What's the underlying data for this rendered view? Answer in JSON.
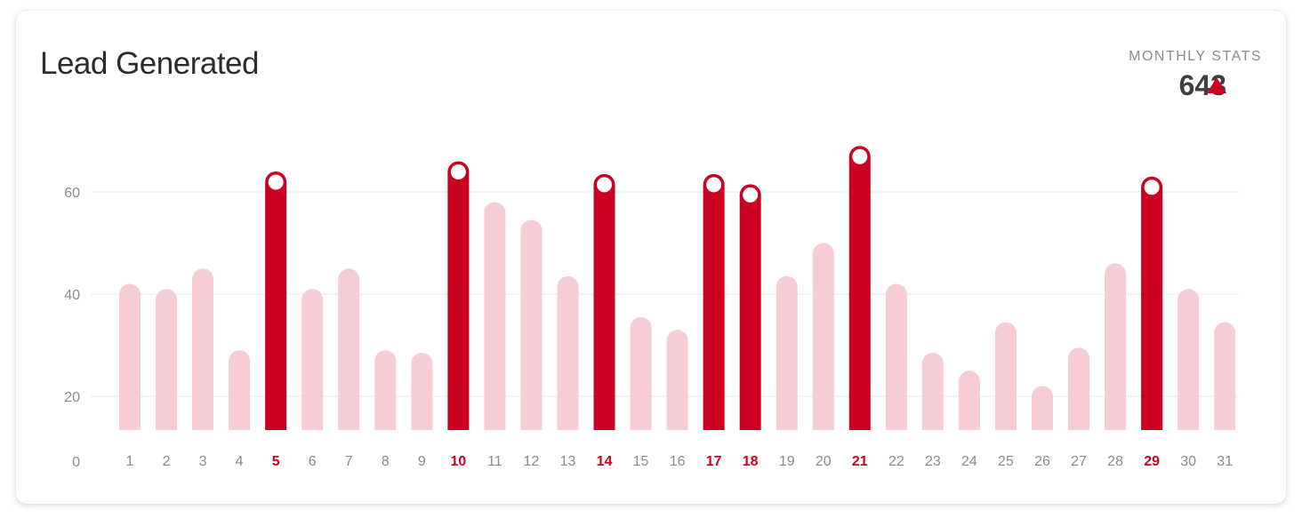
{
  "card": {
    "title": "Lead Generated",
    "stats_label": "MONTHLY STATS",
    "stats_value": "643",
    "stats_trend_icon": "triangle-up-icon"
  },
  "colors": {
    "highlight": "#cc0020",
    "muted": "#f6cdd4",
    "grid": "#eeeeee",
    "label": "#8a8a8a",
    "highlight_label": "#cc0020"
  },
  "chart_data": {
    "type": "bar",
    "title": "Lead Generated",
    "xlabel": "",
    "ylabel": "",
    "ylim": [
      0,
      70
    ],
    "y_ticks": [
      0,
      20,
      40,
      60
    ],
    "grid": true,
    "categories": [
      "1",
      "2",
      "3",
      "4",
      "5",
      "6",
      "7",
      "8",
      "9",
      "10",
      "11",
      "12",
      "13",
      "14",
      "15",
      "16",
      "17",
      "18",
      "19",
      "20",
      "21",
      "22",
      "23",
      "24",
      "25",
      "26",
      "27",
      "28",
      "29",
      "30",
      "31"
    ],
    "values": [
      42,
      41,
      45,
      29,
      64,
      41,
      45,
      29,
      28.5,
      66,
      58,
      54.5,
      43.5,
      63.5,
      35.5,
      33,
      63.5,
      61.5,
      43.5,
      50,
      69,
      42,
      28.5,
      25,
      34.5,
      22,
      29.5,
      46,
      63,
      41,
      34.5
    ],
    "highlighted": [
      "5",
      "10",
      "14",
      "17",
      "18",
      "21",
      "29"
    ]
  }
}
